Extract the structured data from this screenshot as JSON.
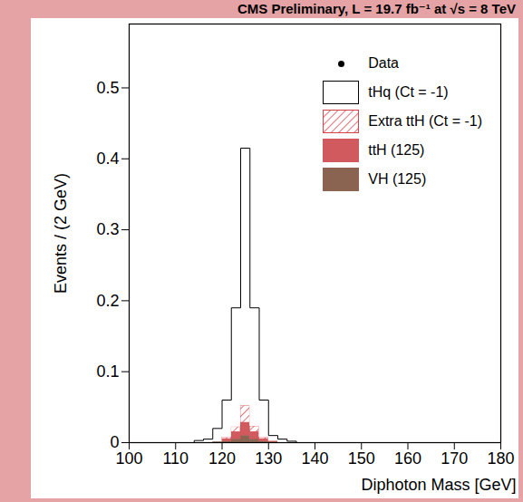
{
  "chart_data": {
    "type": "histogram",
    "title": "CMS Preliminary, L = 19.7 fb⁻¹ at √s = 8 TeV",
    "x_label": "Diphoton Mass [GeV]",
    "y_label": "Events / (2 GeV)",
    "bins": [
      100,
      102,
      104,
      106,
      108,
      110,
      112,
      114,
      116,
      118,
      120,
      122,
      124,
      126,
      128,
      130,
      132,
      134,
      136,
      138,
      140,
      142,
      144,
      146,
      148,
      150,
      152,
      154,
      156,
      158,
      160,
      162,
      164,
      166,
      168,
      170,
      172,
      174,
      176,
      178,
      180
    ],
    "stacked": true,
    "legend": "top-right",
    "series": [
      {
        "name": "Data",
        "type": "scatter",
        "marker": "circle",
        "color": "#000000",
        "values": [
          null,
          null,
          null,
          null,
          null,
          null,
          null,
          null,
          null,
          null,
          null,
          null,
          null,
          null,
          null,
          null,
          null,
          null,
          null,
          null,
          null,
          null,
          null,
          null,
          null,
          null,
          null,
          null,
          null,
          null,
          null,
          null,
          null,
          null,
          null,
          null,
          null,
          null,
          null,
          null
        ]
      },
      {
        "name": "VH (125)",
        "color": "#8b6451",
        "values": [
          0,
          0,
          0,
          0,
          0,
          0,
          0,
          0,
          0,
          0.001,
          0.002,
          0.005,
          0.01,
          0.005,
          0.002,
          0.001,
          0,
          0,
          0,
          0,
          0,
          0,
          0,
          0,
          0,
          0,
          0,
          0,
          0,
          0,
          0,
          0,
          0,
          0,
          0,
          0,
          0,
          0,
          0,
          0
        ]
      },
      {
        "name": "ttH (125)",
        "color": "#d05a5e",
        "values": [
          0,
          0,
          0,
          0,
          0,
          0,
          0,
          0,
          0,
          0,
          0.003,
          0.01,
          0.018,
          0.01,
          0.003,
          0.001,
          0,
          0,
          0,
          0,
          0,
          0,
          0,
          0,
          0,
          0,
          0,
          0,
          0,
          0,
          0,
          0,
          0,
          0,
          0,
          0,
          0,
          0,
          0,
          0
        ]
      },
      {
        "name": "Extra ttH (Ct = -1)",
        "color": "#d9414a",
        "marker": "hatched",
        "values": [
          0,
          0,
          0,
          0,
          0,
          0,
          0,
          0,
          0,
          0,
          0.002,
          0.007,
          0.024,
          0.008,
          0.002,
          0,
          0,
          0,
          0,
          0,
          0,
          0,
          0,
          0,
          0,
          0,
          0,
          0,
          0,
          0,
          0,
          0,
          0,
          0,
          0,
          0,
          0,
          0,
          0,
          0
        ]
      },
      {
        "name": "tHq (Ct = -1)",
        "color": "#ffffff",
        "values": [
          0,
          0,
          0,
          0,
          0,
          0,
          0,
          0.003,
          0.005,
          0.019,
          0.053,
          0.168,
          0.363,
          0.167,
          0.053,
          0.008,
          0.005,
          0.002,
          0,
          0,
          0,
          0,
          0,
          0,
          0,
          0,
          0,
          0,
          0,
          0,
          0,
          0,
          0,
          0,
          0,
          0,
          0,
          0,
          0,
          0
        ]
      }
    ],
    "xlim": [
      100,
      180
    ],
    "xticks": [
      100,
      110,
      120,
      130,
      140,
      150,
      160,
      170,
      180
    ],
    "ylim": [
      0,
      0.59
    ],
    "yticks": [
      0,
      0.1,
      0.2,
      0.3,
      0.4,
      0.5
    ]
  }
}
